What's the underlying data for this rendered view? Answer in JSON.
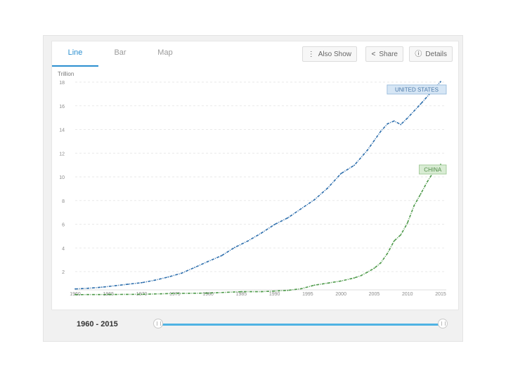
{
  "tabs": {
    "line": "Line",
    "bar": "Bar",
    "map": "Map"
  },
  "toolbar": {
    "also_show": "Also Show",
    "share": "Share",
    "details": "Details"
  },
  "range": {
    "label": "1960 - 2015",
    "start": 1960,
    "end": 2015
  },
  "colors": {
    "us": "#2e6fad",
    "china": "#4e9a4a",
    "accent": "#2b8fd0",
    "slider": "#4fb3e3"
  },
  "chart_data": {
    "type": "line",
    "unit_label": "Trillion",
    "ylim": [
      0,
      18
    ],
    "yticks": [
      2,
      4,
      6,
      8,
      10,
      12,
      14,
      16,
      18
    ],
    "xlim": [
      1960,
      2015
    ],
    "xticks": [
      1960,
      1965,
      1970,
      1975,
      1980,
      1985,
      1990,
      1995,
      2000,
      2005,
      2010,
      2015
    ],
    "grid": true,
    "series": [
      {
        "name": "UNITED STATES",
        "x": [
          1960,
          1962,
          1964,
          1966,
          1968,
          1970,
          1972,
          1974,
          1976,
          1978,
          1980,
          1982,
          1984,
          1986,
          1988,
          1990,
          1992,
          1994,
          1996,
          1998,
          2000,
          2002,
          2004,
          2006,
          2007,
          2008,
          2009,
          2010,
          2012,
          2014,
          2015
        ],
        "y": [
          0.54,
          0.6,
          0.69,
          0.81,
          0.94,
          1.07,
          1.28,
          1.55,
          1.87,
          2.36,
          2.86,
          3.34,
          4.04,
          4.59,
          5.25,
          5.98,
          6.54,
          7.31,
          8.07,
          9.06,
          10.28,
          10.98,
          12.27,
          13.86,
          14.48,
          14.72,
          14.42,
          14.96,
          16.16,
          17.42,
          18.04
        ]
      },
      {
        "name": "CHINA",
        "x": [
          1960,
          1965,
          1970,
          1975,
          1980,
          1985,
          1988,
          1990,
          1992,
          1994,
          1996,
          1998,
          2000,
          2002,
          2003,
          2004,
          2005,
          2006,
          2007,
          2008,
          2009,
          2010,
          2011,
          2012,
          2013,
          2014,
          2015
        ],
        "y": [
          0.06,
          0.07,
          0.09,
          0.16,
          0.19,
          0.31,
          0.31,
          0.36,
          0.42,
          0.56,
          0.86,
          1.03,
          1.21,
          1.47,
          1.66,
          1.96,
          2.29,
          2.75,
          3.55,
          4.59,
          5.11,
          6.1,
          7.57,
          8.56,
          9.6,
          10.48,
          11.06
        ]
      }
    ]
  }
}
